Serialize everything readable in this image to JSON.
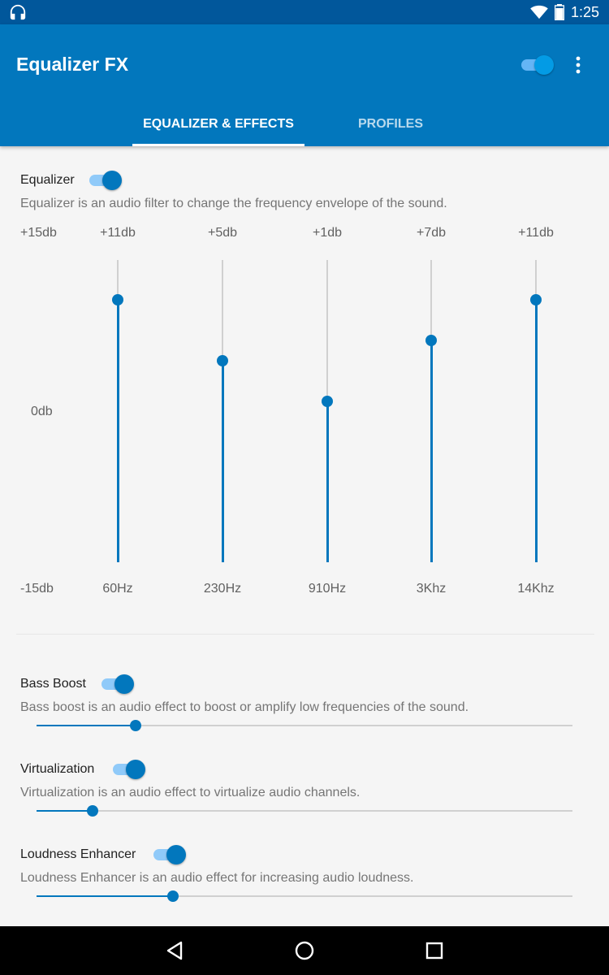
{
  "status_bar": {
    "time": "1:25"
  },
  "app_bar": {
    "title": "Equalizer FX",
    "master_enabled": true
  },
  "tabs": [
    {
      "label": "EQUALIZER & EFFECTS",
      "active": true
    },
    {
      "label": "PROFILES",
      "active": false
    }
  ],
  "equalizer": {
    "title": "Equalizer",
    "enabled": true,
    "description": "Equalizer is an audio filter to change the frequency envelope of the sound.",
    "scale": {
      "max_label": "+15db",
      "mid_label": "0db",
      "min_label": "-15db"
    },
    "bands": [
      {
        "freq": "60Hz",
        "level_label": "+11db",
        "level_db": 11
      },
      {
        "freq": "230Hz",
        "level_label": "+5db",
        "level_db": 5
      },
      {
        "freq": "910Hz",
        "level_label": "+1db",
        "level_db": 1
      },
      {
        "freq": "3Khz",
        "level_label": "+7db",
        "level_db": 7
      },
      {
        "freq": "14Khz",
        "level_label": "+11db",
        "level_db": 11
      }
    ]
  },
  "effects": [
    {
      "title": "Bass Boost",
      "enabled": true,
      "description": "Bass boost is an audio effect to boost or amplify low frequencies of the sound.",
      "level": 0.185
    },
    {
      "title": "Virtualization",
      "enabled": true,
      "description": "Virtualization is an audio effect to virtualize audio channels.",
      "level": 0.104
    },
    {
      "title": "Loudness Enhancer",
      "enabled": true,
      "description": "Loudness Enhancer is an audio effect for increasing audio loudness.",
      "level": 0.254
    }
  ],
  "colors": {
    "accent": "#0277bd",
    "app_bar": "#0277bd",
    "status_bar": "#01579b"
  },
  "icons": {
    "status_left": "headphones-icon",
    "status_right": [
      "wifi-icon",
      "battery-icon"
    ],
    "nav": [
      "back-icon",
      "home-icon",
      "recents-icon"
    ],
    "menu": "overflow-menu-icon"
  }
}
